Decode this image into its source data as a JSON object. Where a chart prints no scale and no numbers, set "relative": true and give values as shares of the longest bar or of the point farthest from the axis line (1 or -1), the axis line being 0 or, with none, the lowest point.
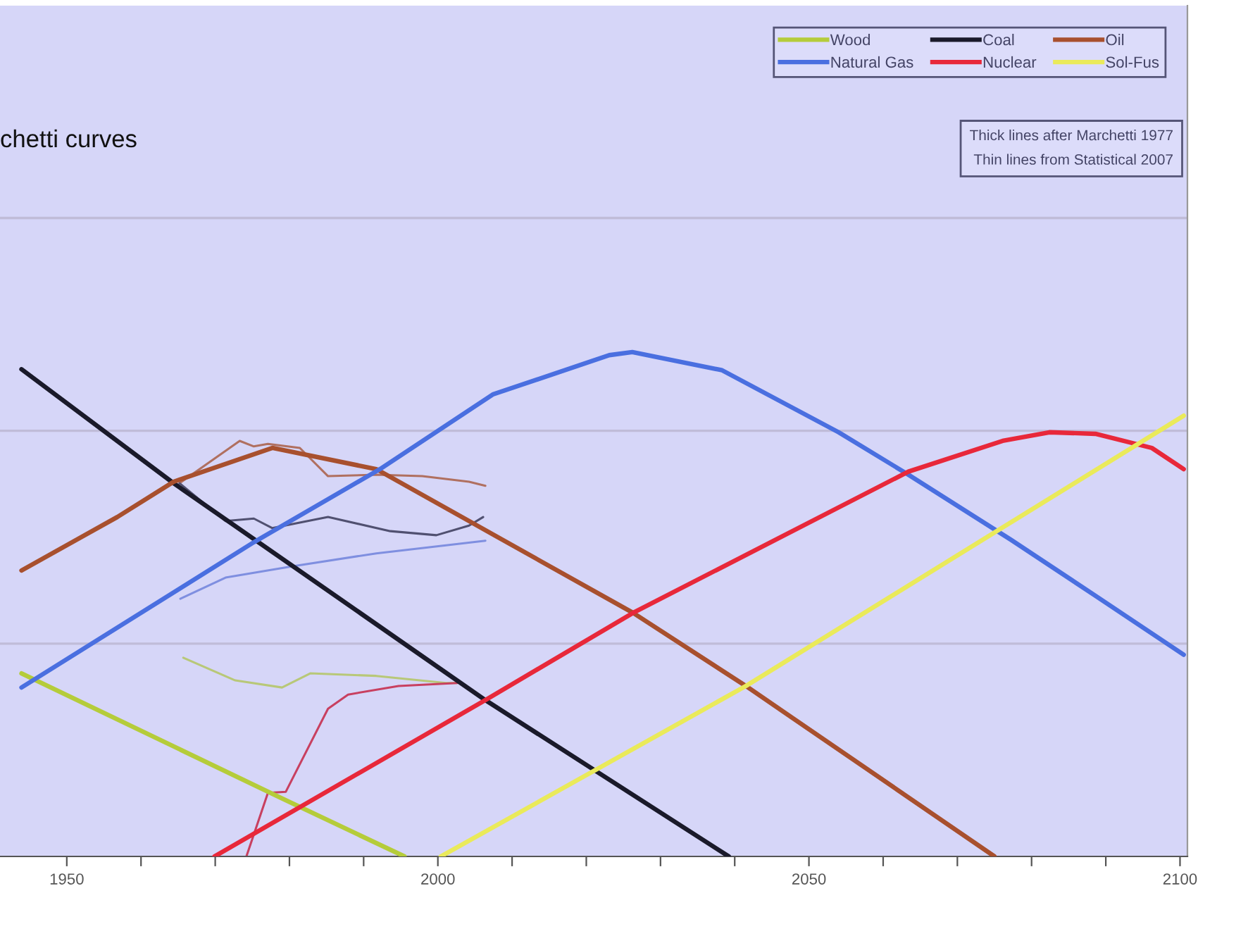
{
  "chart_data": {
    "type": "line",
    "title": "chetti curves",
    "relative": true,
    "xlim": [
      1941,
      2101
    ],
    "xticks": [
      1950,
      {
        "value": 1960,
        "label": null
      },
      {
        "value": 1970,
        "label": null
      },
      {
        "value": 1980,
        "label": null
      },
      {
        "value": 1990,
        "label": null
      },
      2000,
      {
        "value": 2010,
        "label": null
      },
      {
        "value": 2020,
        "label": null
      },
      {
        "value": 2030,
        "label": null
      },
      {
        "value": 2040,
        "label": null
      },
      2050,
      {
        "value": 2060,
        "label": null
      },
      {
        "value": 2070,
        "label": null
      },
      {
        "value": 2080,
        "label": null
      },
      {
        "value": 2090,
        "label": null
      },
      2100
    ],
    "tick_labels": "x",
    "legend": "top right",
    "ref_lines": [
      {
        "axis": "y",
        "value": 0.422,
        "color": "#c0bcd8"
      },
      {
        "axis": "y",
        "value": 0.844,
        "color": "#c0bcd8"
      },
      {
        "axis": "y",
        "value": 1.266,
        "color": "#c0bcd8"
      }
    ],
    "marker": "none",
    "line_style": "solid",
    "annotations": [
      "Thick lines after Marchetti 1977",
      "Thin lines from Statistical 2007"
    ],
    "series": [
      {
        "name": "Wood",
        "color": "#b5cc3a",
        "x": [
          1943.9,
          1979,
          1995.5
        ],
        "values": [
          0.363,
          0.115,
          0
        ]
      },
      {
        "name": "Coal",
        "color": "#1a1a2a",
        "x": [
          1943.9,
          1964.4,
          2006.4,
          2039.2
        ],
        "values": [
          0.966,
          0.74,
          0.31,
          0
        ]
      },
      {
        "name": "Oil",
        "color": "#a8502e",
        "x": [
          1943.9,
          1956.8,
          1964.4,
          1977.7,
          1991.7,
          2004.2,
          2026.3,
          2041.5,
          2075
        ],
        "values": [
          0.567,
          0.673,
          0.743,
          0.81,
          0.768,
          0.665,
          0.483,
          0.338,
          0
        ]
      },
      {
        "name": "Natural Gas",
        "color": "#4a6fe0",
        "x": [
          1943.9,
          1975.2,
          1992.2,
          2007.4,
          2023.1,
          2026.2,
          2038.3,
          2054,
          2063.4,
          2077.2,
          2088.6,
          2100.5
        ],
        "values": [
          0.335,
          0.623,
          0.768,
          0.916,
          0.994,
          1.0,
          0.964,
          0.841,
          0.757,
          0.628,
          0.517,
          0.4
        ]
      },
      {
        "name": "Nuclear",
        "color": "#e8283a",
        "x": [
          1969.9,
          2006.4,
          2026.3,
          2063.4,
          2076.1,
          2082.4,
          2088.6,
          2096.2,
          2100.5
        ],
        "values": [
          0,
          0.31,
          0.483,
          0.763,
          0.824,
          0.841,
          0.838,
          0.81,
          0.768
        ]
      },
      {
        "name": "Sol-Fus",
        "color": "#eaea5a",
        "x": [
          2000.4,
          2041.5,
          2100.5
        ],
        "values": [
          0,
          0.338,
          0.874
        ]
      },
      {
        "color": "#b07060",
        "x": [
          1965.2,
          1973.3,
          1975.2,
          1977.1,
          1981.4,
          1985.2,
          1991.7,
          1997.9,
          2004.2,
          2006.4
        ],
        "values": [
          0.74,
          0.824,
          0.813,
          0.818,
          0.81,
          0.754,
          0.757,
          0.754,
          0.743,
          0.735
        ]
      },
      {
        "color": "#505070",
        "x": [
          1965.2,
          1971.4,
          1975.2,
          1977.7,
          1985.2,
          1993.6,
          1999.8,
          2004.2,
          2006.1
        ],
        "values": [
          0.74,
          0.665,
          0.67,
          0.651,
          0.673,
          0.645,
          0.637,
          0.656,
          0.673
        ]
      },
      {
        "color": "#7f8fe0",
        "x": [
          1965.3,
          1971.4,
          1980.3,
          1991.7,
          2001.1,
          2006.4
        ],
        "values": [
          0.511,
          0.553,
          0.575,
          0.601,
          0.617,
          0.626
        ]
      },
      {
        "color": "#b8c878",
        "x": [
          1965.7,
          1972.7,
          1979,
          1982.8,
          1991.7,
          2001.1,
          2002.6
        ],
        "values": [
          0.394,
          0.349,
          0.335,
          0.363,
          0.358,
          0.344,
          0.344
        ]
      },
      {
        "color": "#c84060",
        "x": [
          1974.2,
          1977.1,
          1979.5,
          1985.2,
          1987.9,
          1994.7,
          2002.6
        ],
        "values": [
          0,
          0.126,
          0.128,
          0.293,
          0.321,
          0.338,
          0.344
        ]
      }
    ]
  }
}
